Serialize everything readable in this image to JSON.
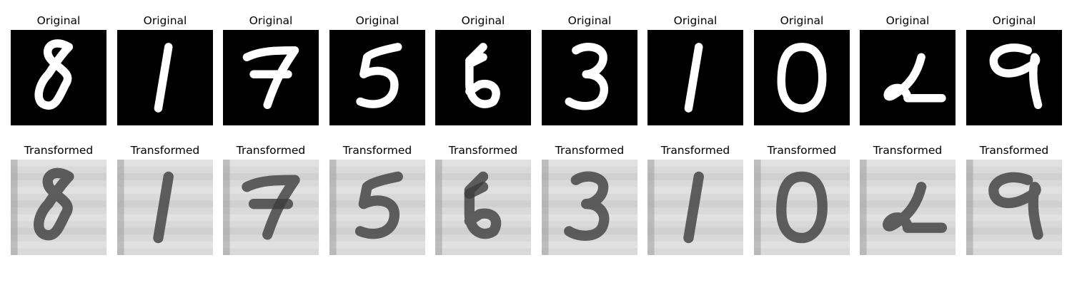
{
  "figure": {
    "rows": [
      {
        "key": "original",
        "panels": [
          {
            "title": "Original",
            "digit": "8"
          },
          {
            "title": "Original",
            "digit": "1"
          },
          {
            "title": "Original",
            "digit": "7"
          },
          {
            "title": "Original",
            "digit": "5"
          },
          {
            "title": "Original",
            "digit": "6"
          },
          {
            "title": "Original",
            "digit": "3"
          },
          {
            "title": "Original",
            "digit": "1"
          },
          {
            "title": "Original",
            "digit": "0"
          },
          {
            "title": "Original",
            "digit": "2"
          },
          {
            "title": "Original",
            "digit": "9"
          }
        ]
      },
      {
        "key": "transformed",
        "panels": [
          {
            "title": "Transformed",
            "digit": "8"
          },
          {
            "title": "Transformed",
            "digit": "1"
          },
          {
            "title": "Transformed",
            "digit": "7"
          },
          {
            "title": "Transformed",
            "digit": "5"
          },
          {
            "title": "Transformed",
            "digit": "6"
          },
          {
            "title": "Transformed",
            "digit": "3"
          },
          {
            "title": "Transformed",
            "digit": "1"
          },
          {
            "title": "Transformed",
            "digit": "0"
          },
          {
            "title": "Transformed",
            "digit": "2"
          },
          {
            "title": "Transformed",
            "digit": "9"
          }
        ]
      }
    ],
    "colors": {
      "original_background": "#000000",
      "original_stroke": "#ffffff",
      "transformed_background": "#d9d9d9",
      "transformed_stroke": "#3c3c3c"
    }
  }
}
